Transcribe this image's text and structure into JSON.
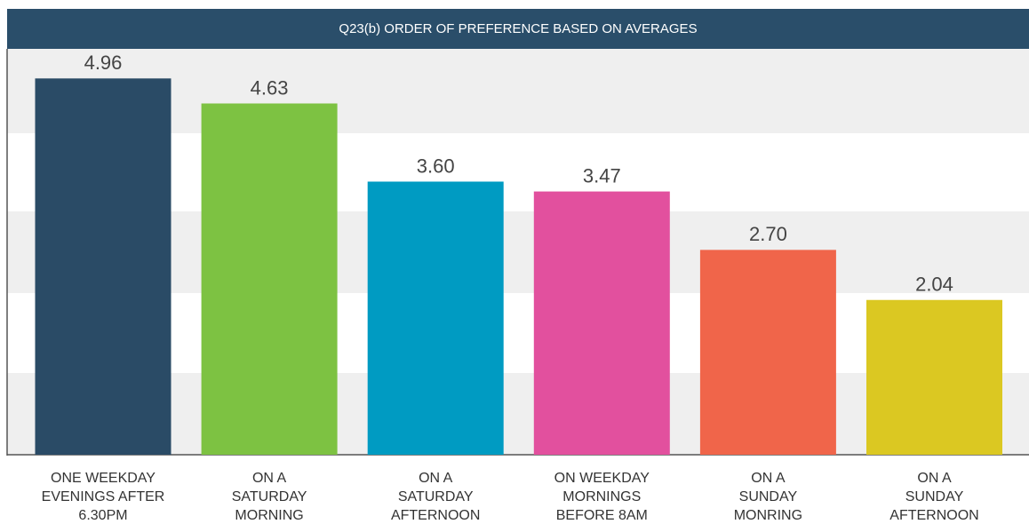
{
  "chart_data": {
    "type": "bar",
    "title": "Q23(b) ORDER OF PREFERENCE BASED ON AVERAGES",
    "categories": [
      "ONE WEEKDAY\nEVENINGS AFTER\n6.30PM",
      "ON A\nSATURDAY\nMORNING",
      "ON A\nSATURDAY\nAFTERNOON",
      "ON WEEKDAY\nMORNINGS\nBEFORE 8AM",
      "ON A\nSUNDAY\nMONRING",
      "ON A\nSUNDAY\nAFTERNOON"
    ],
    "values": [
      4.96,
      4.63,
      3.6,
      3.47,
      2.7,
      2.04
    ],
    "value_labels": [
      "4.96",
      "4.63",
      "3.60",
      "3.47",
      "2.70",
      "2.04"
    ],
    "colors": [
      "#2a4b66",
      "#7dc242",
      "#009bc2",
      "#e2509e",
      "#f0654a",
      "#dbc822"
    ],
    "ylim": [
      0,
      5.35
    ]
  }
}
